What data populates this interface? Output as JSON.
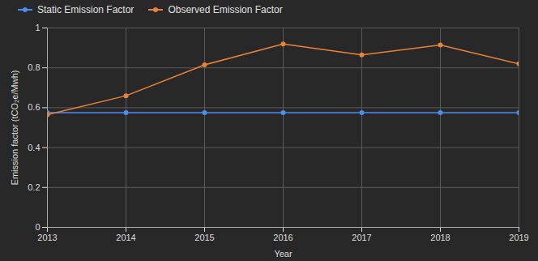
{
  "chart_data": {
    "type": "line",
    "x_label": "Year",
    "y_label": "Emission factor (tCO₂e/Mwh)",
    "x": [
      2013,
      2014,
      2015,
      2016,
      2017,
      2018,
      2019
    ],
    "series": [
      {
        "name": "Static Emission Factor",
        "color": "#4a8ef0",
        "marker": "circle",
        "values": [
          0.575,
          0.575,
          0.575,
          0.575,
          0.575,
          0.575,
          0.575
        ]
      },
      {
        "name": "Observed Emission Factor",
        "color": "#e8833a",
        "marker": "circle",
        "values": [
          0.565,
          0.66,
          0.815,
          0.92,
          0.865,
          0.915,
          0.82
        ]
      }
    ],
    "xlim": [
      2013,
      2019
    ],
    "xticks": [
      2013,
      2014,
      2015,
      2016,
      2017,
      2018,
      2019
    ],
    "ylim": [
      0,
      1
    ],
    "yticks": [
      0,
      0.2,
      0.4,
      0.6,
      0.8,
      1
    ],
    "grid": true,
    "legend": "top-left"
  }
}
